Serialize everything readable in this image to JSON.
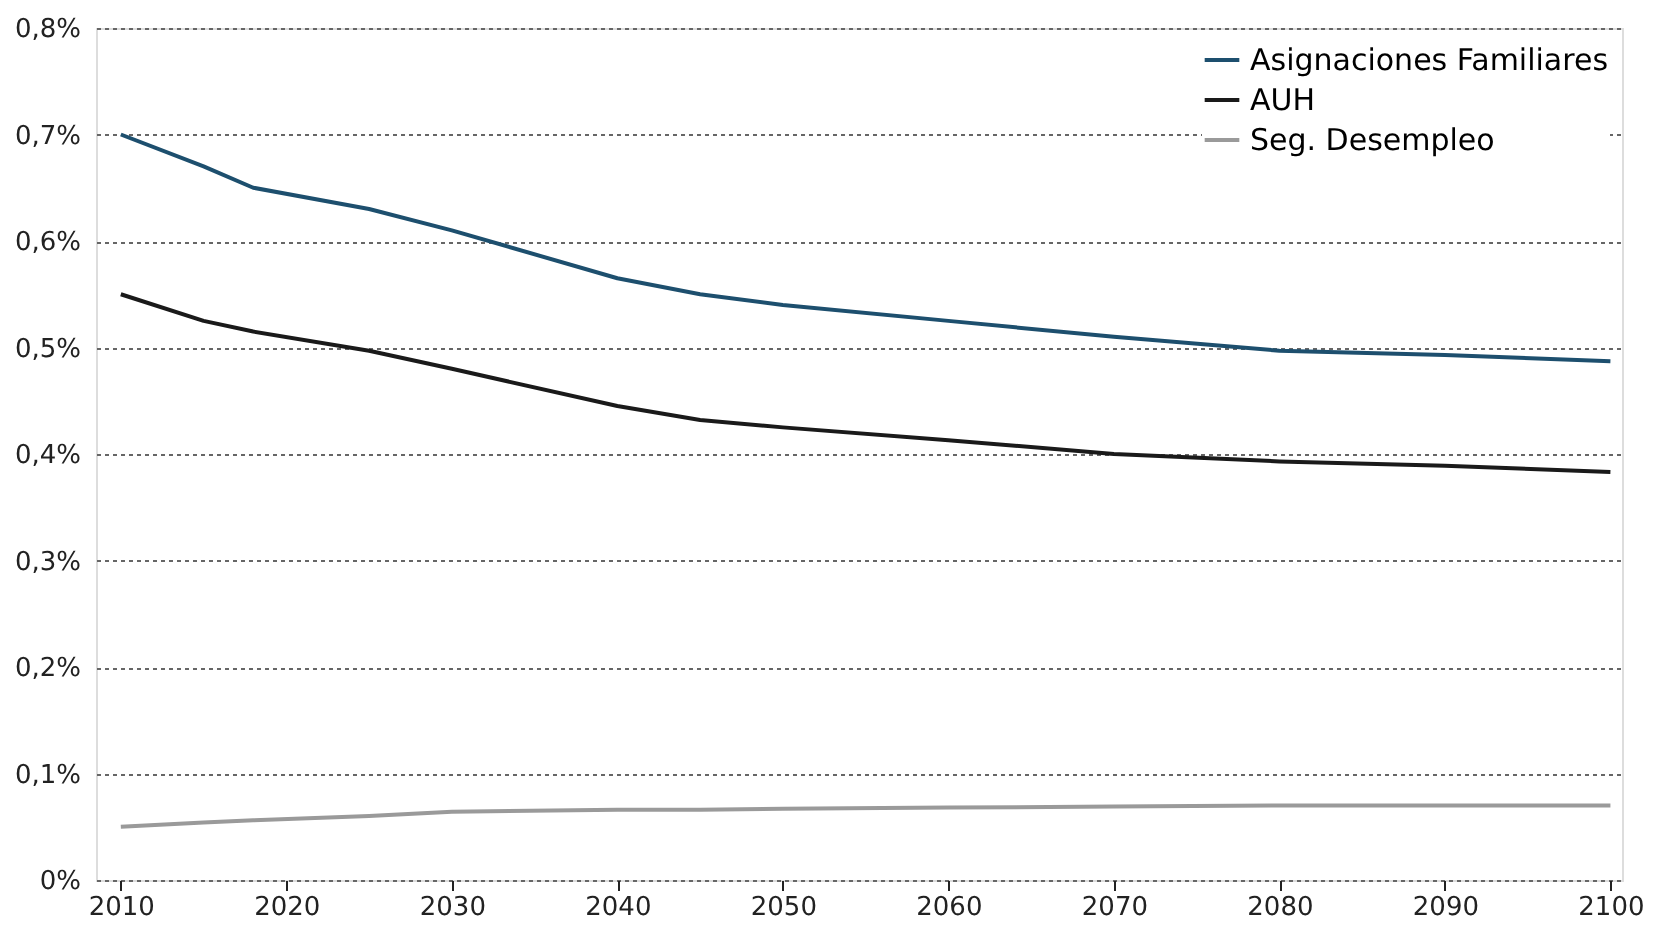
{
  "chart_data": {
    "type": "line",
    "x": [
      2010,
      2015,
      2018,
      2025,
      2030,
      2040,
      2045,
      2050,
      2060,
      2070,
      2080,
      2090,
      2100
    ],
    "series": [
      {
        "name": "Asignaciones Familiares",
        "color": "#1d4f6e",
        "values": [
          0.7,
          0.67,
          0.65,
          0.63,
          0.61,
          0.565,
          0.55,
          0.54,
          0.525,
          0.51,
          0.497,
          0.493,
          0.487
        ]
      },
      {
        "name": "AUH",
        "color": "#1a1a1a",
        "values": [
          0.55,
          0.525,
          0.515,
          0.497,
          0.48,
          0.445,
          0.432,
          0.425,
          0.413,
          0.4,
          0.393,
          0.389,
          0.383
        ]
      },
      {
        "name": "Seg. Desempleo",
        "color": "#9a9a9a",
        "values": [
          0.05,
          0.054,
          0.056,
          0.06,
          0.064,
          0.066,
          0.066,
          0.067,
          0.068,
          0.069,
          0.07,
          0.07,
          0.07
        ]
      }
    ],
    "xlim": [
      2008.5,
      2100.7
    ],
    "xticks": [
      2010,
      2020,
      2030,
      2040,
      2050,
      2060,
      2070,
      2080,
      2090,
      2100
    ],
    "ylim": [
      0,
      0.8
    ],
    "yticks": [
      {
        "value": 0,
        "label": "0%"
      },
      {
        "value": 0.1,
        "label": "0,1%"
      },
      {
        "value": 0.2,
        "label": "0,2%"
      },
      {
        "value": 0.3,
        "label": "0,3%"
      },
      {
        "value": 0.4,
        "label": "0,4%"
      },
      {
        "value": 0.5,
        "label": "0,5%"
      },
      {
        "value": 0.6,
        "label": "0,6%"
      },
      {
        "value": 0.7,
        "label": "0,7%"
      },
      {
        "value": 0.8,
        "label": "0,8%"
      }
    ],
    "grid": "y",
    "legend": "top right",
    "marker": "none",
    "line_style": "solid"
  }
}
